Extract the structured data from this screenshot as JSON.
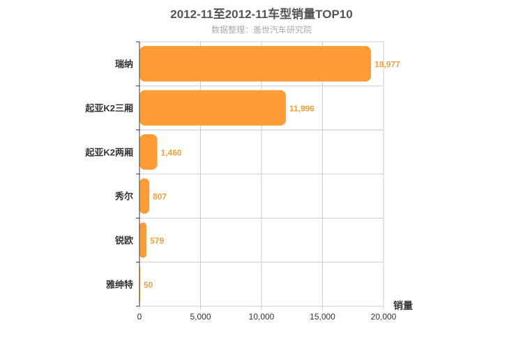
{
  "chart_data": {
    "type": "bar",
    "orientation": "horizontal",
    "title": "2012-11至2012-11车型销量TOP10",
    "subtitle": "数据整理：盖世汽车研究院",
    "categories": [
      "瑞纳",
      "起亚K2三厢",
      "起亚K2两厢",
      "秀尔",
      "锐欧",
      "雅绅特"
    ],
    "values": [
      18977,
      11996,
      1460,
      807,
      579,
      50
    ],
    "value_labels": [
      "18,977",
      "11,996",
      "1,460",
      "807",
      "579",
      "50"
    ],
    "xlabel": "销量",
    "xlim": [
      0,
      20000
    ],
    "xticks": [
      0,
      5000,
      10000,
      15000,
      20000
    ],
    "xtick_labels": [
      "0",
      "5,000",
      "10,000",
      "15,000",
      "20,000"
    ],
    "grid": true,
    "colors": {
      "bar": "#ff9c35",
      "value_label": "#f0a040",
      "grid": "#cccccc",
      "axis": "#333333"
    }
  }
}
